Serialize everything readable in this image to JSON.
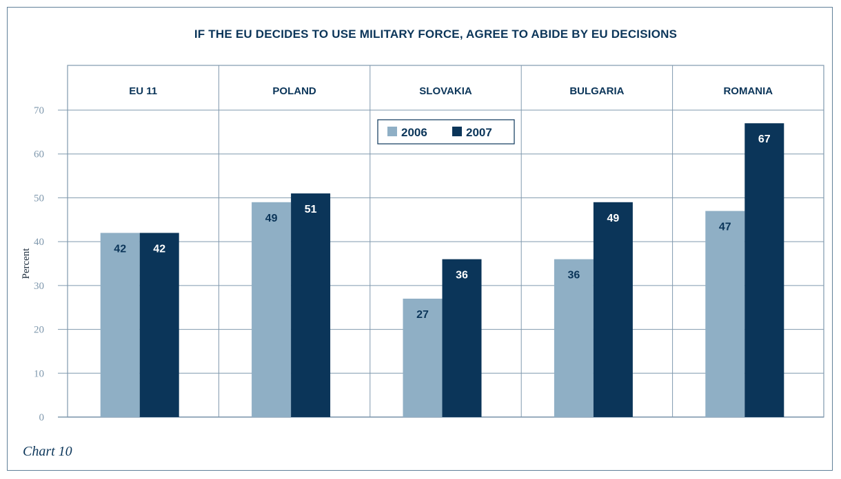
{
  "chart_data": {
    "type": "bar",
    "title": "IF THE EU DECIDES TO USE MILITARY FORCE, AGREE TO ABIDE BY EU DECISIONS",
    "categories": [
      "EU 11",
      "POLAND",
      "SLOVAKIA",
      "BULGARIA",
      "ROMANIA"
    ],
    "series": [
      {
        "name": "2006",
        "values": [
          42,
          49,
          27,
          36,
          47
        ],
        "color": "#8fafc5"
      },
      {
        "name": "2007",
        "values": [
          42,
          51,
          36,
          49,
          67
        ],
        "color": "#0b3559"
      }
    ],
    "ylabel": "Percent",
    "ylim": [
      0,
      70
    ],
    "yticks": [
      "0",
      "10",
      "20",
      "30",
      "40",
      "50",
      "60",
      "70"
    ],
    "grid": true,
    "legend_position": "top-center",
    "label_colors": {
      "on_light": "#0b3559",
      "on_dark": "#ffffff"
    }
  },
  "caption": "Chart 10"
}
